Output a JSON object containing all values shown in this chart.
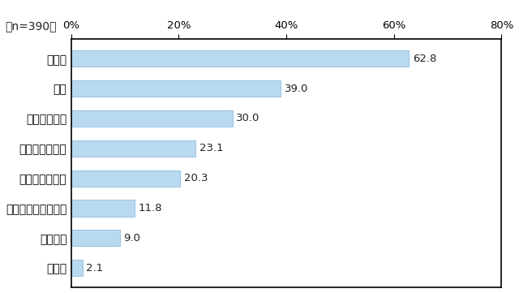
{
  "categories": [
    "テレビ",
    "新聞",
    "選挙ポスター",
    "選挙公報・ビラ",
    "インターネット",
    "活用した媒体はない",
    "街頭演説",
    "ラジオ"
  ],
  "values": [
    62.8,
    39.0,
    30.0,
    23.1,
    20.3,
    11.8,
    9.0,
    2.1
  ],
  "bar_color": "#b8d9f0",
  "bar_edge_color": "#90bde0",
  "text_color": "#222222",
  "background_color": "#ffffff",
  "n_label": "（n=390）",
  "xlim": [
    0,
    80
  ],
  "xticks": [
    0,
    20,
    40,
    60,
    80
  ],
  "xtick_labels": [
    "0%",
    "20%",
    "40%",
    "60%",
    "80%"
  ],
  "bar_height": 0.55,
  "value_fontsize": 9.5,
  "label_fontsize": 10,
  "tick_fontsize": 9.5,
  "n_fontsize": 10
}
